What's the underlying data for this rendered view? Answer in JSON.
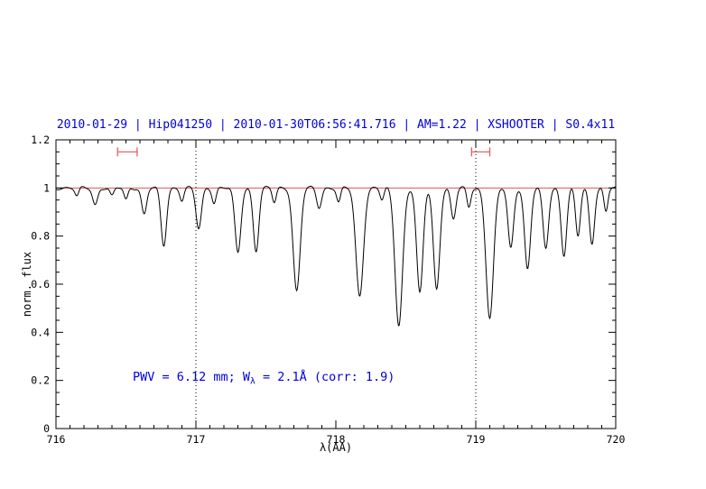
{
  "title": "2010-01-29 | Hip041250 | 2010-01-30T06:56:41.716 | AM=1.22 | XSHOOTER | S0.4x11",
  "colors": {
    "title_blue": "#0000dd",
    "annotation_blue": "#0000dd",
    "red_line": "#dd5555",
    "spectrum_black": "#000000",
    "axis_black": "#000000"
  },
  "annotation": {
    "part1": "PWV = 6.12 mm; W",
    "sub": "λ",
    "part2": " = 2.1Å (corr: 1.9)"
  },
  "chart_data": {
    "type": "line",
    "title": "2010-01-29 | Hip041250 | 2010-01-30T06:56:41.716 | AM=1.22 | XSHOOTER | S0.4x11",
    "xlabel": "λ(AA)",
    "ylabel": "norm. flux",
    "xlim": [
      716,
      720
    ],
    "ylim": [
      0,
      1.2
    ],
    "x_ticks": [
      716,
      717,
      718,
      719,
      720
    ],
    "x_tick_labels": [
      "716",
      "717",
      "718",
      "719",
      "720"
    ],
    "y_ticks": [
      0,
      0.2,
      0.4,
      0.6,
      0.8,
      1,
      1.2
    ],
    "y_tick_labels": [
      "0",
      "0.2",
      "0.4",
      "0.6",
      "0.8",
      "1",
      "1.2"
    ],
    "grid": false,
    "legend": "none",
    "continuum_level": 1.0,
    "reference_hline_y": 1.0,
    "dotted_vlines": [
      717,
      719
    ],
    "range_markers": [
      {
        "x1": 716.44,
        "x2": 716.58,
        "y": 1.15
      },
      {
        "x1": 718.97,
        "x2": 719.1,
        "y": 1.15
      }
    ],
    "sampling_step": 0.004,
    "absorption_lines": [
      [
        716.15,
        0.035,
        0.02
      ],
      [
        716.28,
        0.07,
        0.025
      ],
      [
        716.4,
        0.035,
        0.02
      ],
      [
        716.5,
        0.05,
        0.02
      ],
      [
        716.63,
        0.11,
        0.025
      ],
      [
        716.77,
        0.24,
        0.028
      ],
      [
        716.9,
        0.05,
        0.02
      ],
      [
        717.02,
        0.17,
        0.028
      ],
      [
        717.13,
        0.06,
        0.02
      ],
      [
        717.3,
        0.27,
        0.03
      ],
      [
        717.43,
        0.26,
        0.028
      ],
      [
        717.56,
        0.06,
        0.02
      ],
      [
        717.72,
        0.43,
        0.035
      ],
      [
        717.88,
        0.08,
        0.025
      ],
      [
        718.02,
        0.06,
        0.02
      ],
      [
        718.17,
        0.45,
        0.038
      ],
      [
        718.33,
        0.05,
        0.02
      ],
      [
        718.45,
        0.57,
        0.038
      ],
      [
        718.6,
        0.44,
        0.032
      ],
      [
        718.72,
        0.42,
        0.032
      ],
      [
        718.84,
        0.13,
        0.025
      ],
      [
        718.95,
        0.08,
        0.02
      ],
      [
        719.1,
        0.54,
        0.038
      ],
      [
        719.25,
        0.25,
        0.028
      ],
      [
        719.37,
        0.34,
        0.03
      ],
      [
        719.5,
        0.25,
        0.028
      ],
      [
        719.63,
        0.28,
        0.028
      ],
      [
        719.73,
        0.2,
        0.024
      ],
      [
        719.83,
        0.23,
        0.026
      ],
      [
        719.93,
        0.1,
        0.02
      ]
    ]
  }
}
